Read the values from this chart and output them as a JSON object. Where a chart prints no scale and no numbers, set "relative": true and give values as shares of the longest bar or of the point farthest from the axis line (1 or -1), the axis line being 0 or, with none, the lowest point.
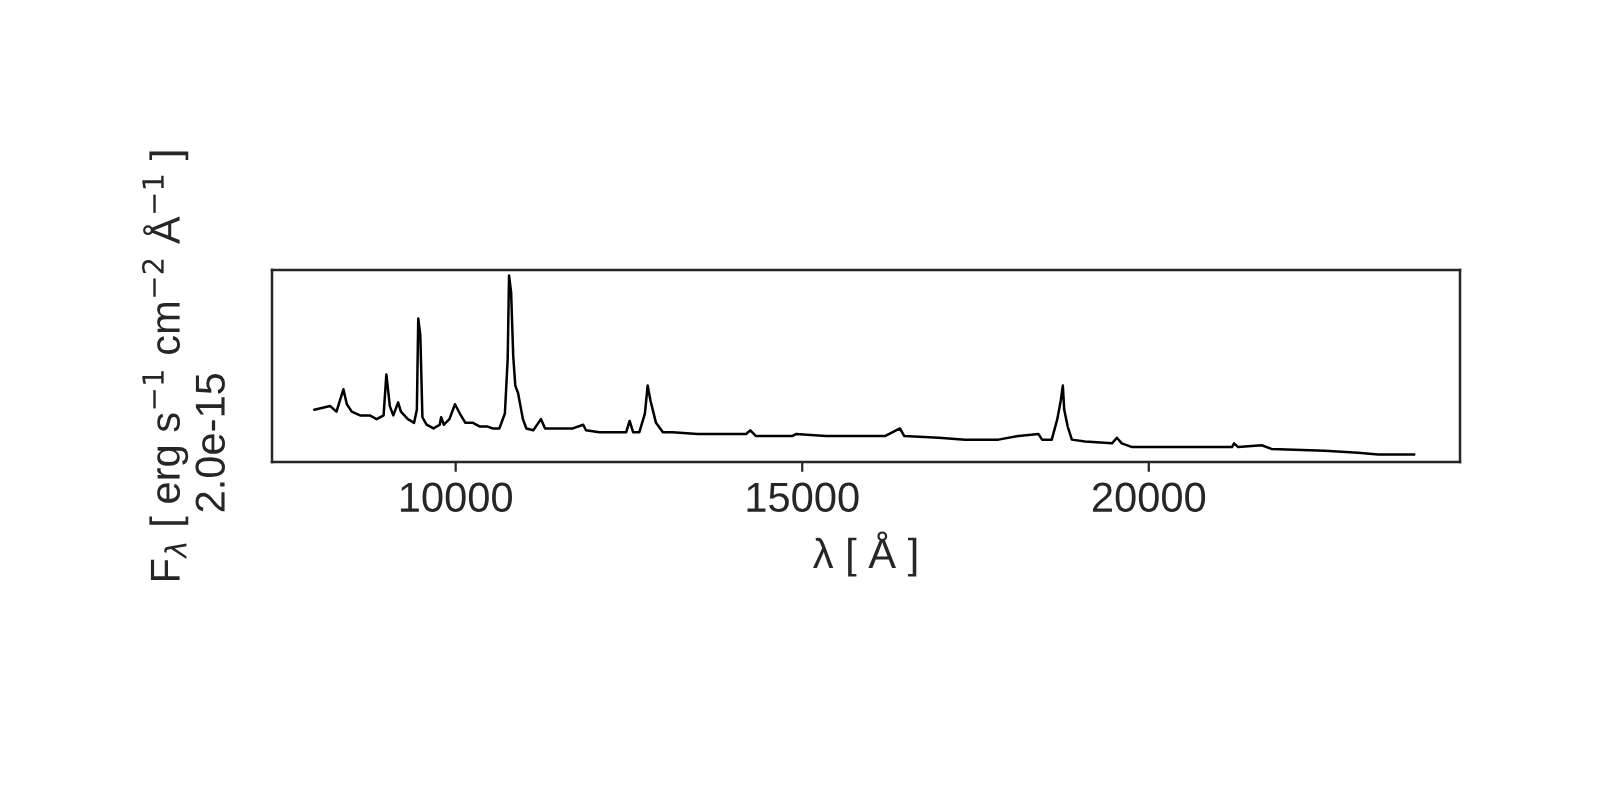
{
  "chart_data": {
    "type": "line",
    "relative": true,
    "xlabel": "λ [ Å ]",
    "ylabel": "F$_{λ}$ [ erg s$^{−1}$ cm$^{−2}$ Å$^{−1}$ ]",
    "annotations": [
      "2.0e-15"
    ],
    "xlim": [
      7350,
      24490
    ],
    "xticks": [
      10000,
      15000,
      20000
    ],
    "series": [
      {
        "color": "#000000",
        "x": [
          7960,
          8190,
          8280,
          8380,
          8430,
          8500,
          8620,
          8760,
          8860,
          8960,
          9000,
          9050,
          9100,
          9170,
          9210,
          9310,
          9400,
          9440,
          9460,
          9490,
          9520,
          9580,
          9680,
          9770,
          9790,
          9830,
          9910,
          9990,
          10060,
          10140,
          10250,
          10350,
          10460,
          10540,
          10630,
          10710,
          10750,
          10770,
          10800,
          10830,
          10860,
          10900,
          10970,
          11020,
          11120,
          11230,
          11290,
          11400,
          11690,
          11840,
          11880,
          12070,
          12460,
          12510,
          12560,
          12650,
          12730,
          12770,
          12810,
          12890,
          12990,
          13130,
          13490,
          14190,
          14250,
          14330,
          14860,
          14910,
          15340,
          15820,
          16200,
          16410,
          16470,
          16970,
          17350,
          17830,
          18120,
          18410,
          18460,
          18600,
          18680,
          18730,
          18760,
          18780,
          18830,
          18890,
          19080,
          19470,
          19540,
          19610,
          19760,
          20620,
          21200,
          21230,
          21290,
          21630,
          21770,
          22540,
          23020,
          23310,
          23830
        ],
        "values": [
          0.28,
          0.3,
          0.27,
          0.39,
          0.31,
          0.27,
          0.25,
          0.25,
          0.23,
          0.25,
          0.47,
          0.3,
          0.25,
          0.32,
          0.27,
          0.23,
          0.21,
          0.28,
          0.77,
          0.68,
          0.24,
          0.2,
          0.18,
          0.2,
          0.24,
          0.2,
          0.23,
          0.31,
          0.26,
          0.21,
          0.21,
          0.19,
          0.19,
          0.18,
          0.18,
          0.26,
          0.55,
          1.0,
          0.91,
          0.57,
          0.41,
          0.37,
          0.23,
          0.18,
          0.17,
          0.23,
          0.18,
          0.18,
          0.18,
          0.2,
          0.17,
          0.16,
          0.16,
          0.22,
          0.16,
          0.16,
          0.26,
          0.41,
          0.33,
          0.21,
          0.16,
          0.16,
          0.15,
          0.15,
          0.17,
          0.14,
          0.14,
          0.15,
          0.14,
          0.14,
          0.14,
          0.18,
          0.14,
          0.13,
          0.12,
          0.12,
          0.14,
          0.15,
          0.12,
          0.12,
          0.23,
          0.33,
          0.41,
          0.28,
          0.19,
          0.12,
          0.11,
          0.1,
          0.13,
          0.1,
          0.08,
          0.08,
          0.08,
          0.1,
          0.08,
          0.09,
          0.07,
          0.06,
          0.05,
          0.04,
          0.04
        ]
      }
    ]
  }
}
